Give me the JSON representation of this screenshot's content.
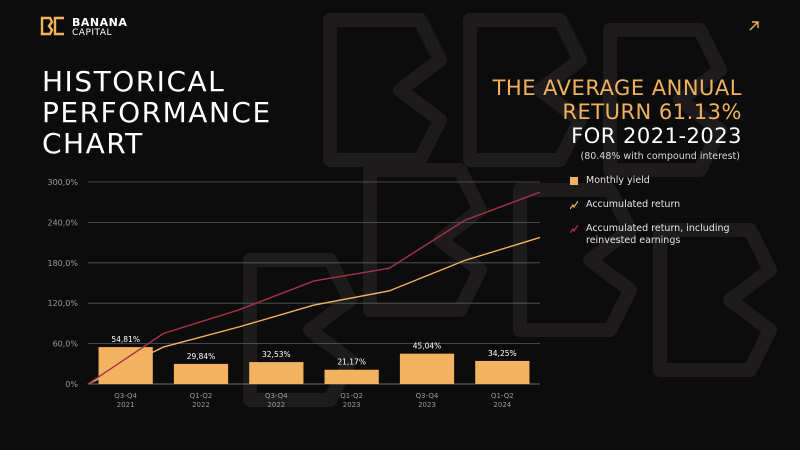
{
  "brand": {
    "name": "BANANA",
    "sub": "CAPITAL",
    "mark": "BC",
    "accent": "#F3B25F"
  },
  "corner_icon": "arrow-up-right-icon",
  "title": "HISTORICAL\nPERFORMANCE\nCHART",
  "headline": {
    "line1": "THE AVERAGE ANNUAL",
    "line2": "RETURN 61.13%",
    "line3": "FOR 2021-2023"
  },
  "sub_note": "(80.48% with compound interest)",
  "legend": [
    {
      "label": "Monthly yield",
      "kind": "bar",
      "color": "#F3B25F"
    },
    {
      "label": "Accumulated return",
      "kind": "line",
      "color": "#F3B25F"
    },
    {
      "label": "Accumulated return, including reinvested earnings",
      "kind": "line",
      "color": "#A8324F"
    }
  ],
  "chart_data": {
    "type": "bar",
    "categories": [
      "Q3-Q4 2021",
      "Q1-Q2 2022",
      "Q3-Q4 2022",
      "Q1-Q2 2023",
      "Q3-Q4 2023",
      "Q1-Q2 2024"
    ],
    "category_lines": [
      [
        "Q3-Q4",
        "2021"
      ],
      [
        "Q1-Q2",
        "2022"
      ],
      [
        "Q3-Q4",
        "2022"
      ],
      [
        "Q1-Q2",
        "2023"
      ],
      [
        "Q3-Q4",
        "2023"
      ],
      [
        "Q1-Q2",
        "2024"
      ]
    ],
    "yticks": [
      "0%",
      "60,0%",
      "120,0%",
      "180,0%",
      "240,0%",
      "300,0%"
    ],
    "ylim": [
      0,
      300
    ],
    "series": [
      {
        "name": "Monthly yield",
        "type": "bar",
        "color": "#F3B25F",
        "values": [
          54.81,
          29.84,
          32.53,
          21.17,
          45.04,
          34.25
        ],
        "labels": [
          "54,81%",
          "29,84%",
          "32,53%",
          "21,17%",
          "45,04%",
          "34,25%"
        ]
      },
      {
        "name": "Accumulated return",
        "type": "line",
        "color": "#F3B25F",
        "x": [
          0,
          1,
          2,
          3,
          4,
          5,
          6
        ],
        "values": [
          0,
          54.81,
          84.65,
          117.18,
          138.35,
          183.39,
          217.64
        ]
      },
      {
        "name": "Accumulated return, including reinvested earnings",
        "type": "line",
        "color": "#A8324F",
        "x": [
          0,
          1,
          2,
          3,
          4,
          5,
          6
        ],
        "values": [
          0,
          75,
          110,
          153,
          172,
          243,
          285
        ]
      }
    ],
    "grid": true,
    "legend_position": "right"
  }
}
